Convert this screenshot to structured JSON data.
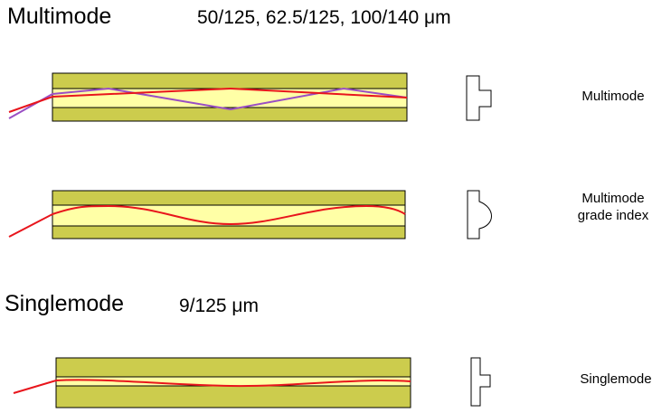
{
  "sections": {
    "multimode": {
      "title": "Multimode",
      "spec": "50/125, 62.5/125, 100/140  μm"
    },
    "singlemode": {
      "title": "Singlemode",
      "spec": "9/125  μm"
    }
  },
  "fibers": [
    {
      "id": "multimode-step",
      "label_lines": [
        "Multimode"
      ],
      "profile": "step",
      "ray_paths": 2
    },
    {
      "id": "multimode-graded",
      "label_lines": [
        "Multimode",
        "grade index"
      ],
      "profile": "graded",
      "ray_paths": 1
    },
    {
      "id": "singlemode",
      "label_lines": [
        "Singlemode"
      ],
      "profile": "step-narrow",
      "ray_paths": 1
    }
  ],
  "colors": {
    "cladding": "#cccc4d",
    "core": "#ffffa6",
    "ray_primary": "#e8151c",
    "ray_secondary": "#9a4fc4",
    "outline": "#000000"
  }
}
